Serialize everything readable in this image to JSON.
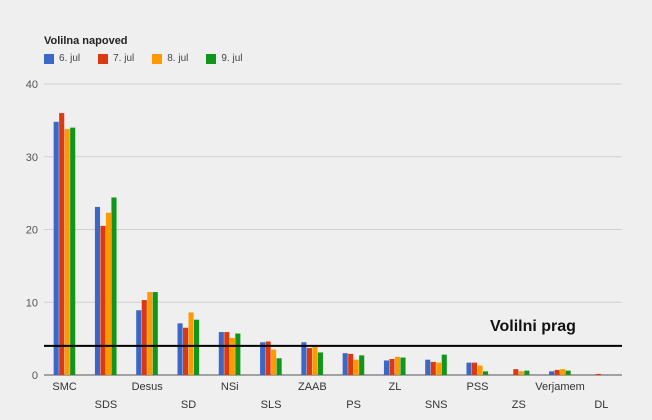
{
  "chart_data": {
    "type": "bar",
    "title": "Volilna napoved",
    "categories": [
      "SMC",
      "SDS",
      "Desus",
      "SD",
      "NSi",
      "SLS",
      "ZAAB",
      "PS",
      "ZL",
      "SNS",
      "PSS",
      "ZS",
      "Verjamem",
      "DL"
    ],
    "series": [
      {
        "name": "6. jul",
        "color": "#3b67c9",
        "values": [
          34.8,
          23.1,
          8.9,
          7.1,
          5.9,
          4.5,
          4.5,
          3.0,
          2.0,
          2.1,
          1.7,
          0.0,
          0.5,
          0.0
        ]
      },
      {
        "name": "7. jul",
        "color": "#dc3912",
        "values": [
          36.0,
          20.5,
          10.3,
          6.5,
          5.9,
          4.6,
          3.7,
          2.9,
          2.2,
          1.8,
          1.7,
          0.8,
          0.7,
          0.15
        ]
      },
      {
        "name": "8. jul",
        "color": "#ff9900",
        "values": [
          33.8,
          22.3,
          11.4,
          8.6,
          5.1,
          3.5,
          3.9,
          2.1,
          2.5,
          1.7,
          1.3,
          0.5,
          0.8,
          0.0
        ]
      },
      {
        "name": "9. jul",
        "color": "#109618",
        "values": [
          34.0,
          24.4,
          11.4,
          7.6,
          5.7,
          2.3,
          3.1,
          2.7,
          2.4,
          2.8,
          0.5,
          0.6,
          0.6,
          0.0
        ]
      }
    ],
    "ylim": [
      0,
      40
    ],
    "yticks": [
      0,
      10,
      20,
      30,
      40
    ],
    "grid": true,
    "legend_position": "top-left",
    "threshold": {
      "value": 4,
      "label": "Volilni prag"
    }
  }
}
